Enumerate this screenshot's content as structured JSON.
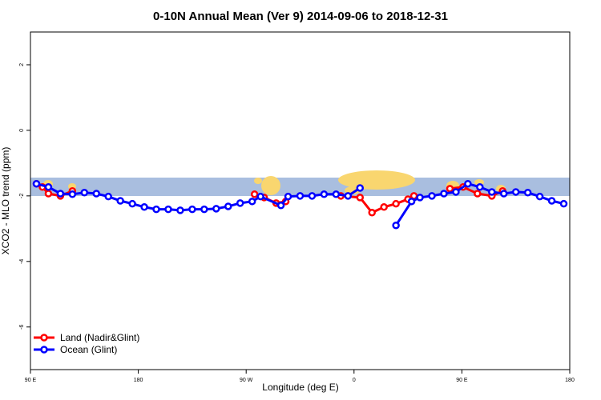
{
  "chart_data": {
    "type": "line",
    "title": "0-10N Annual Mean (Ver 9)   2014-09-06 to 2018-12-31",
    "xlabel": "Longitude (deg E)",
    "ylabel": "XCO2 - MLO trend (ppm)",
    "xlim": [
      90,
      540
    ],
    "xticks": [
      {
        "value": 90,
        "label": "90 E"
      },
      180,
      {
        "value": 270,
        "label": "90 W"
      },
      {
        "value": 360,
        "label": "0"
      },
      {
        "value": 450,
        "label": "90 E"
      },
      {
        "value": 540,
        "label": "180"
      }
    ],
    "ylim": [
      -7.3,
      3
    ],
    "yticks": [
      2,
      0,
      -2,
      -4,
      -6
    ],
    "legend": "bottomleft",
    "series": [
      {
        "name": "Land (Nadir&Glint)",
        "color": "#ff0000",
        "x": [
          95,
          100,
          105,
          115,
          125,
          200,
          277,
          285,
          295,
          303,
          326,
          349,
          365,
          375,
          385,
          395,
          405,
          410,
          425,
          440,
          451,
          463,
          475,
          484
        ],
        "values": [
          -1.63,
          -1.73,
          -1.93,
          -2.0,
          -1.85,
          null,
          -1.95,
          -2.05,
          -2.22,
          -2.17,
          null,
          -2.0,
          -2.05,
          -2.51,
          -2.34,
          -2.24,
          -2.1,
          -2.0,
          null,
          -1.78,
          -1.73,
          -1.93,
          -2.0,
          -1.85
        ]
      },
      {
        "name": "Ocean (Glint)",
        "color": "#0000ff",
        "x": [
          95,
          105,
          115,
          125,
          135,
          145,
          155,
          165,
          175,
          185,
          195,
          205,
          215,
          225,
          235,
          245,
          255,
          265,
          275,
          282,
          299,
          305,
          315,
          325,
          335,
          345,
          355,
          365,
          380,
          395,
          408,
          415,
          425,
          435,
          445,
          455,
          465,
          475,
          485,
          495,
          505,
          515,
          525,
          535
        ],
        "values": [
          -1.63,
          -1.73,
          -1.93,
          -1.95,
          -1.9,
          -1.93,
          -2.02,
          -2.15,
          -2.24,
          -2.34,
          -2.41,
          -2.41,
          -2.44,
          -2.41,
          -2.41,
          -2.39,
          -2.32,
          -2.22,
          -2.17,
          -2.02,
          -2.29,
          -2.02,
          -2.0,
          -2.0,
          -1.95,
          -1.95,
          -2.0,
          -1.76,
          null,
          -2.9,
          -2.17,
          -2.05,
          -2.0,
          -1.93,
          -1.88,
          -1.63,
          -1.73,
          -1.88,
          -1.93,
          -1.88,
          -1.9,
          -2.02,
          -2.15,
          -2.24
        ]
      }
    ]
  }
}
